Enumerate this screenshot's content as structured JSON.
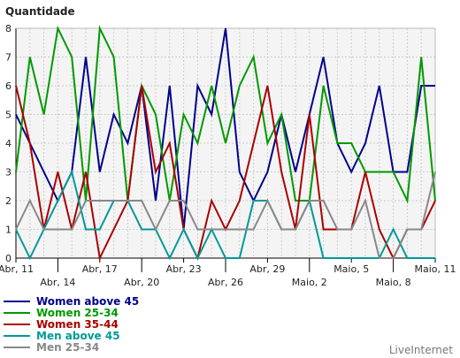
{
  "chart_data": {
    "type": "line",
    "ylabel": "Quantidade",
    "ylim": [
      0,
      8
    ],
    "yticks": [
      0,
      1,
      2,
      3,
      4,
      5,
      6,
      7,
      8
    ],
    "grid": true,
    "legend": "bottom-left",
    "categories": [
      "Abr, 11",
      "",
      "",
      "Abr, 14",
      "",
      "",
      "Abr, 17",
      "",
      "",
      "Abr, 20",
      "",
      "",
      "Abr, 23",
      "",
      "",
      "Abr, 26",
      "",
      "",
      "Abr, 29",
      "",
      "",
      "Maio, 2",
      "",
      "",
      "Maio, 5",
      "",
      "",
      "Maio, 8",
      "",
      "",
      "Maio, 11"
    ],
    "xtick_labels": [
      {
        "i": 0,
        "label": "Abr, 11",
        "row": 0
      },
      {
        "i": 3,
        "label": "Abr, 14",
        "row": 1
      },
      {
        "i": 6,
        "label": "Abr, 17",
        "row": 0
      },
      {
        "i": 9,
        "label": "Abr, 20",
        "row": 1
      },
      {
        "i": 12,
        "label": "Abr, 23",
        "row": 0
      },
      {
        "i": 15,
        "label": "Abr, 26",
        "row": 1
      },
      {
        "i": 18,
        "label": "Abr, 29",
        "row": 0
      },
      {
        "i": 21,
        "label": "Maio, 2",
        "row": 1
      },
      {
        "i": 24,
        "label": "Maio, 5",
        "row": 0
      },
      {
        "i": 27,
        "label": "Maio, 8",
        "row": 1
      },
      {
        "i": 30,
        "label": "Maio, 11",
        "row": 0
      }
    ],
    "series": [
      {
        "name": "Women above 45",
        "color": "#00008b",
        "values": [
          5,
          4,
          3,
          2,
          3,
          7,
          3,
          5,
          4,
          6,
          2,
          6,
          1,
          6,
          5,
          8,
          3,
          2,
          3,
          5,
          3,
          5,
          7,
          4,
          3,
          4,
          6,
          3,
          3,
          6,
          6
        ]
      },
      {
        "name": "Women 25-34",
        "color": "#009900",
        "values": [
          3,
          7,
          5,
          8,
          7,
          2,
          8,
          7,
          2,
          6,
          5,
          2,
          5,
          4,
          6,
          4,
          6,
          7,
          4,
          5,
          2,
          2,
          6,
          4,
          4,
          3,
          3,
          3,
          2,
          7,
          2
        ]
      },
      {
        "name": "Women 35-44",
        "color": "#aa0000",
        "values": [
          6,
          4,
          1,
          3,
          1,
          3,
          0,
          1,
          2,
          6,
          3,
          4,
          1,
          0,
          2,
          1,
          2,
          4,
          6,
          3,
          1,
          5,
          1,
          1,
          1,
          3,
          1,
          0,
          1,
          1,
          2
        ]
      },
      {
        "name": "Men above 45",
        "color": "#009999",
        "values": [
          1,
          0,
          1,
          2,
          3,
          1,
          1,
          2,
          2,
          1,
          1,
          0,
          1,
          0,
          1,
          0,
          0,
          2,
          2,
          1,
          1,
          2,
          0,
          0,
          0,
          0,
          0,
          1,
          0,
          0,
          0
        ]
      },
      {
        "name": "Men 25-34",
        "color": "#888888",
        "values": [
          1,
          2,
          1,
          1,
          1,
          2,
          2,
          2,
          2,
          2,
          1,
          2,
          2,
          1,
          1,
          1,
          1,
          1,
          2,
          1,
          1,
          2,
          2,
          1,
          1,
          2,
          0,
          0,
          1,
          1,
          3
        ]
      }
    ]
  },
  "brand": "LiveInternet"
}
